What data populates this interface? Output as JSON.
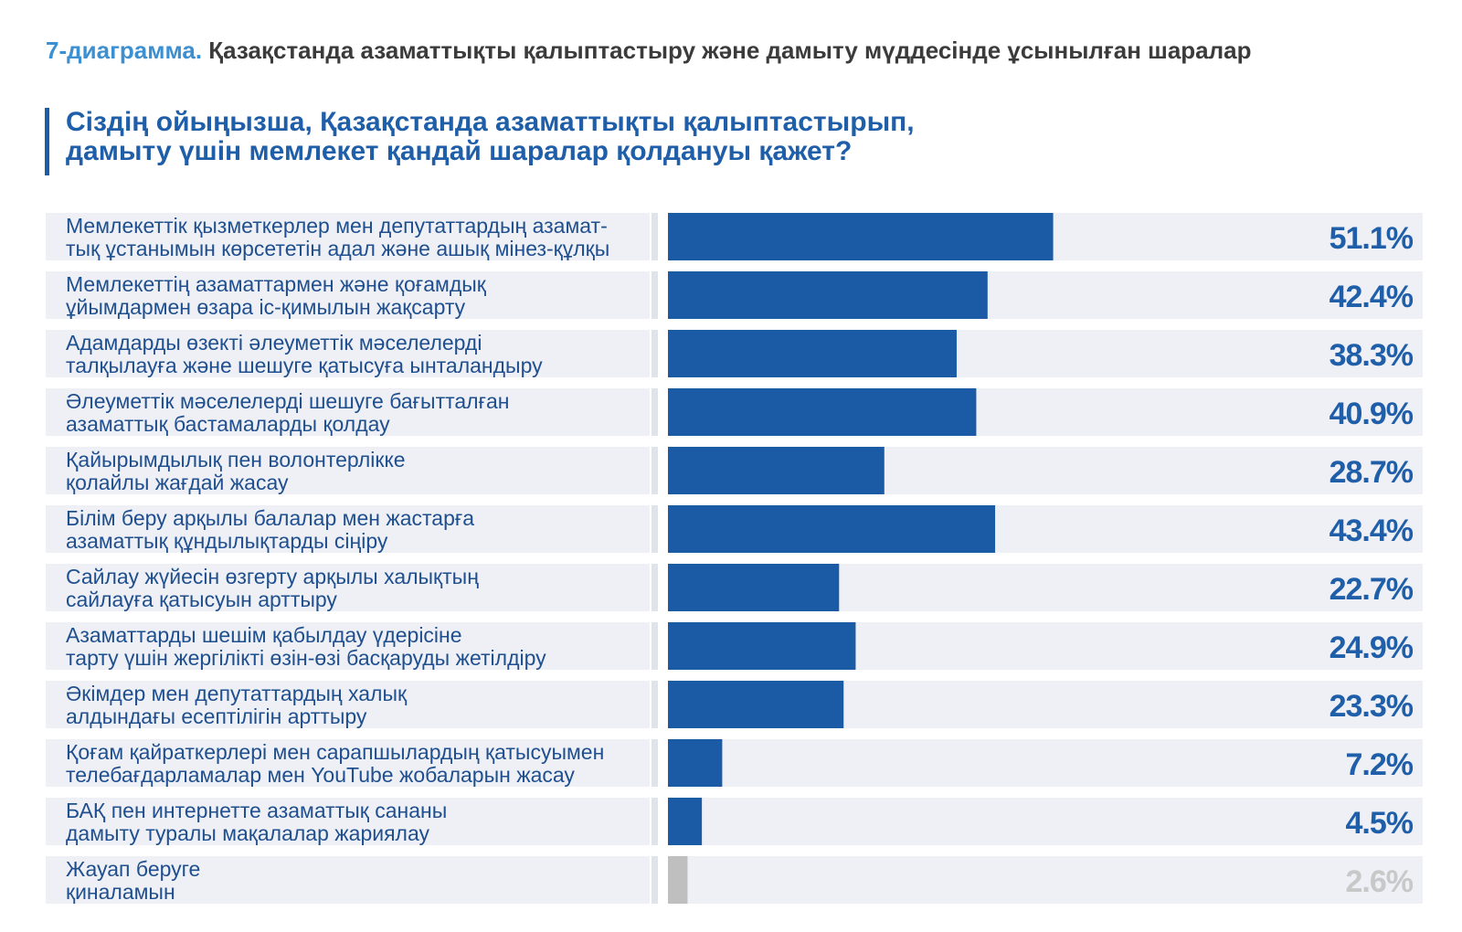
{
  "header": {
    "figure_number": "7-диаграмма.",
    "figure_title": "Қазақстанда азаматтықты қалыптастыру және дамыту мүддесінде ұсынылған шаралар"
  },
  "question": {
    "line1": "Сіздің ойыңызша, Қазақстанда азаматтықты қалыптастырып,",
    "line2": "дамыту үшін мемлекет қандай шаралар қолдануы қажет?"
  },
  "colors": {
    "bar": "#1b5aa5",
    "bar_muted": "#bfbfbf",
    "value_text": "#1f5ea8",
    "value_muted": "#c8c8c8",
    "row_bg": "#eef0f5",
    "label_text": "#1f4f8f"
  },
  "chart_data": {
    "type": "bar",
    "orientation": "horizontal",
    "unit": "%",
    "xlim": [
      0,
      100
    ],
    "grid": false,
    "categories": [
      [
        "Мемлекеттік қызметкерлер мен депутаттардың азамат-",
        "тық ұстанымын көрсететін адал және ашық мінез-құлқы"
      ],
      [
        "Мемлекеттің азаматтармен және қоғамдық",
        "ұйымдармен өзара іс-қимылын жақсарту"
      ],
      [
        "Адамдарды өзекті әлеуметтік мәселелерді",
        "талқылауға және шешуге қатысуға ынталандыру"
      ],
      [
        "Әлеуметтік мәселелерді шешуге бағытталған",
        "азаматтық бастамаларды қолдау"
      ],
      [
        "Қайырымдылық пен волонтерлікке",
        "қолайлы жағдай жасау"
      ],
      [
        "Білім беру арқылы балалар мен жастарға",
        "азаматтық құндылықтарды сіңіру"
      ],
      [
        "Сайлау жүйесін өзгерту арқылы халықтың",
        "сайлауға қатысуын арттыру"
      ],
      [
        "Азаматтарды шешім қабылдау үдерісіне",
        "тарту үшін жергілікті өзін-өзі басқаруды жетілдіру"
      ],
      [
        "Әкімдер мен депутаттардың халық",
        "алдындағы есептілігін арттыру"
      ],
      [
        "Қоғам қайраткерлері мен сарапшылардың қатысуымен",
        "телебағдарламалар мен YouTube жобаларын жасау"
      ],
      [
        "БАҚ пен интернетте азаматтық сананы",
        "дамыту туралы мақалалар жариялау"
      ],
      [
        "Жауап беруге",
        "қиналамын"
      ]
    ],
    "values": [
      51.1,
      42.4,
      38.3,
      40.9,
      28.7,
      43.4,
      22.7,
      24.9,
      23.3,
      7.2,
      4.5,
      2.6
    ],
    "value_labels": [
      "51.1%",
      "42.4%",
      "38.3%",
      "40.9%",
      "28.7%",
      "43.4%",
      "22.7%",
      "24.9%",
      "23.3%",
      "7.2%",
      "4.5%",
      "2.6%"
    ],
    "muted_index": 11
  }
}
